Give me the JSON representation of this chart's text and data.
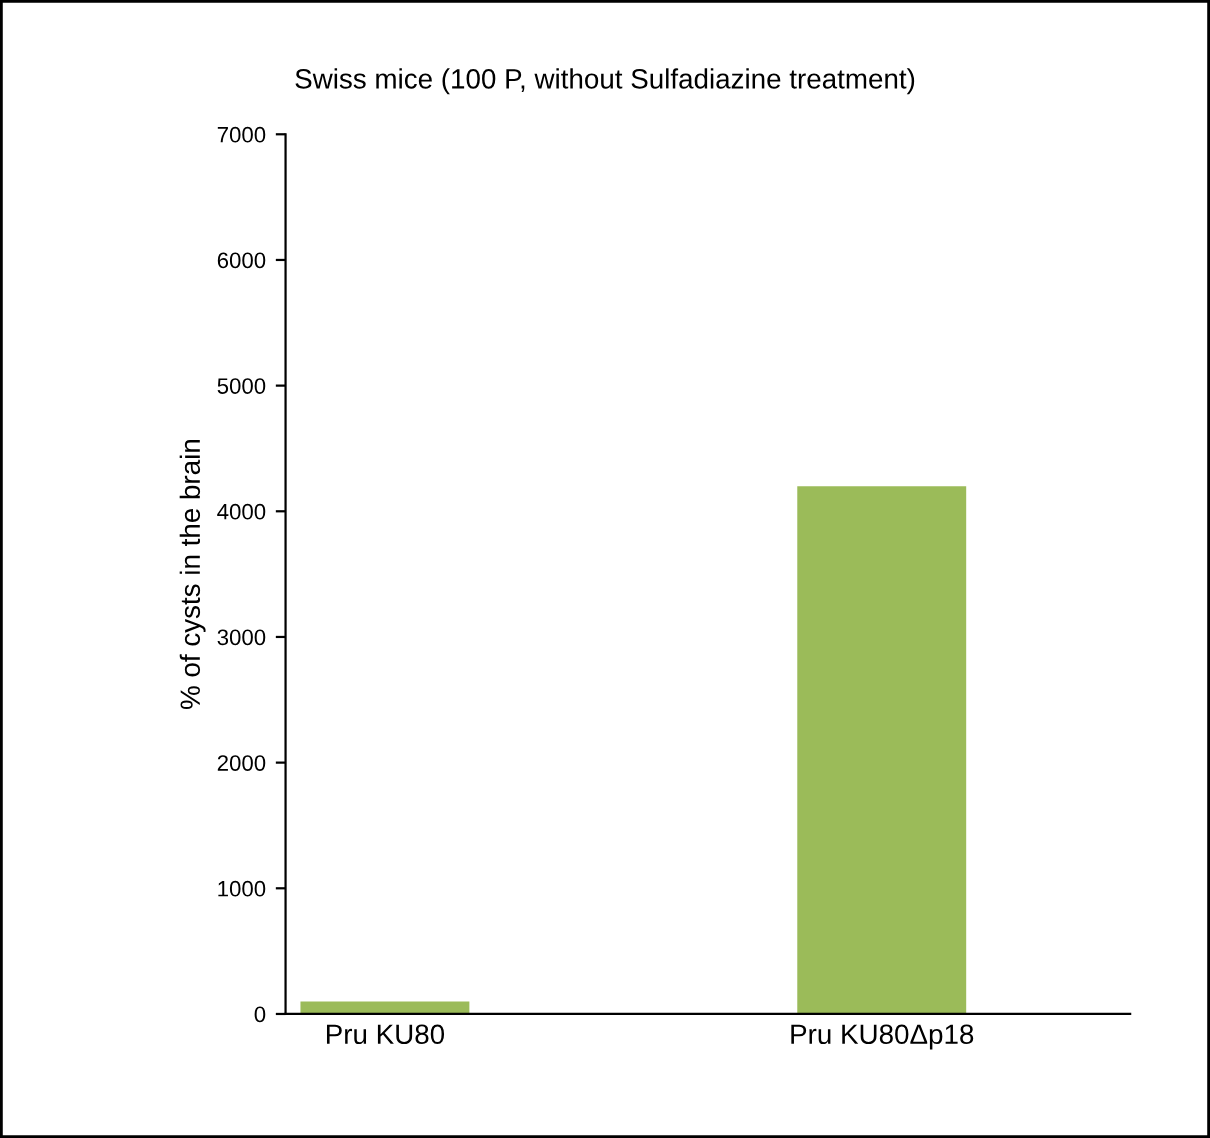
{
  "chart_data": {
    "type": "bar",
    "title": "Swiss mice (100 P, without Sulfadiazine treatment)",
    "ylabel": "% of cysts in the brain",
    "categories": [
      "Pru KU80",
      "Pru KU80Δp18"
    ],
    "values": [
      100,
      4200
    ],
    "color": "#9bbb59",
    "ylim": [
      0,
      7000
    ],
    "yticks": [
      0,
      1000,
      2000,
      3000,
      4000,
      5000,
      6000,
      7000
    ],
    "grid": false,
    "legend": false
  }
}
